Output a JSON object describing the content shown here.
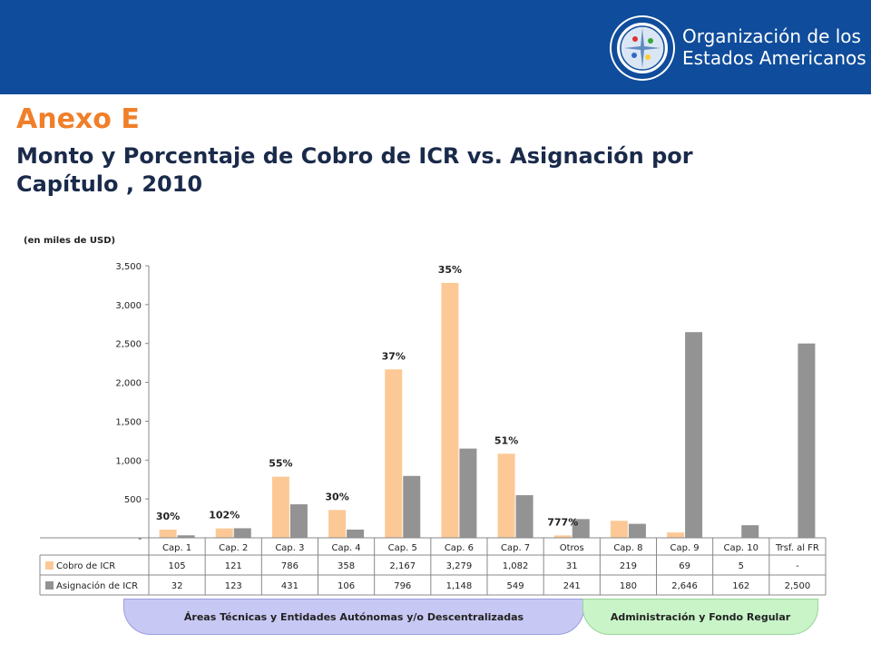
{
  "header": {
    "org_line1": "Organización de los",
    "org_line2": "Estados Americanos",
    "seal_icon": "oas-seal-icon"
  },
  "title": {
    "annex": "Anexo E",
    "subtitle": "Monto y Porcentaje de Cobro de ICR vs. Asignación por Capítulo , 2010"
  },
  "units_note": "(en miles de USD)",
  "colors": {
    "header_bg": "#0f4c9b",
    "annex": "#f07f2a",
    "cobro": "#fcc996",
    "asignacion": "#939393"
  },
  "chart_data": {
    "type": "bar",
    "categories": [
      "Cap. 1",
      "Cap. 2",
      "Cap. 3",
      "Cap. 4",
      "Cap. 5",
      "Cap. 6",
      "Cap. 7",
      "Otros",
      "Cap. 8",
      "Cap. 9",
      "Cap. 10",
      "Trsf. al FR"
    ],
    "series": [
      {
        "name": "Cobro de ICR",
        "values": [
          105,
          121,
          786,
          358,
          2167,
          3279,
          1082,
          31,
          219,
          69,
          5,
          0
        ],
        "display": [
          "105",
          "121",
          "786",
          "358",
          "2,167",
          "3,279",
          "1,082",
          "31",
          "219",
          "69",
          "5",
          "-"
        ]
      },
      {
        "name": "Asignación de ICR",
        "values": [
          32,
          123,
          431,
          106,
          796,
          1148,
          549,
          241,
          180,
          2646,
          162,
          2500
        ],
        "display": [
          "32",
          "123",
          "431",
          "106",
          "796",
          "1,148",
          "549",
          "241",
          "180",
          "2,646",
          "162",
          "2,500"
        ]
      }
    ],
    "percent_labels": [
      "30%",
      "102%",
      "55%",
      "30%",
      "37%",
      "35%",
      "51%",
      "777%",
      "",
      "",
      "",
      ""
    ],
    "yticks": [
      "-",
      "500",
      "1,000",
      "1,500",
      "2,000",
      "2,500",
      "3,000",
      "3,500"
    ],
    "ylim": [
      0,
      3500
    ],
    "groups": [
      {
        "label": "Áreas Técnicas y Entidades Autónomas y/o Descentralizadas",
        "span": 8
      },
      {
        "label": "Administración y Fondo Regular",
        "span": 4
      }
    ],
    "legend": "table",
    "grid": false
  }
}
